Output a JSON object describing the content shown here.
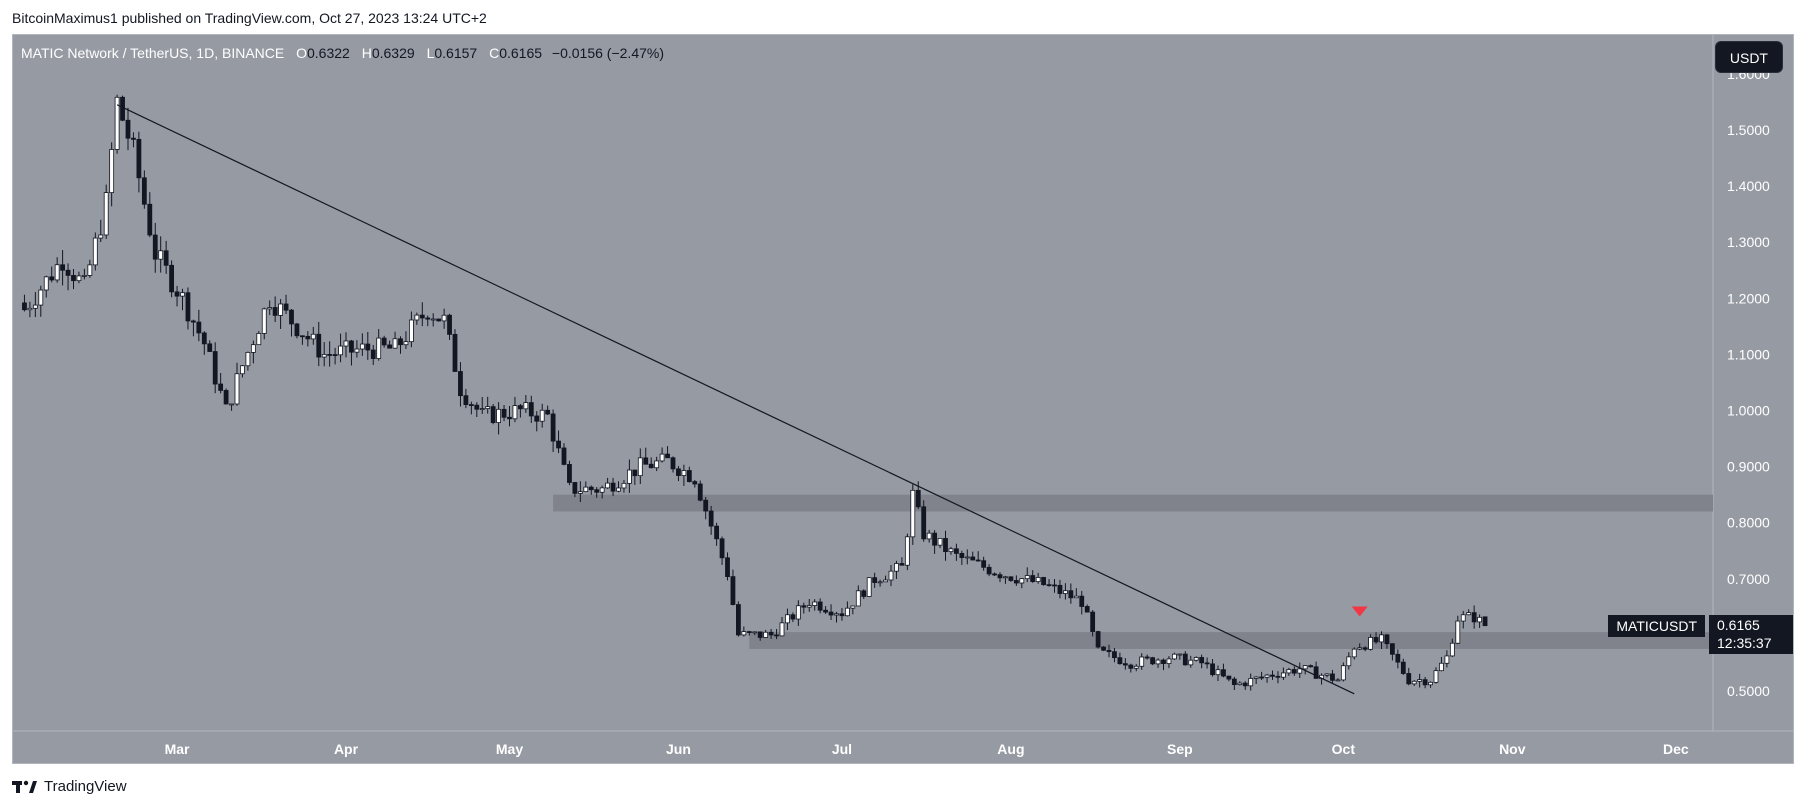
{
  "header": {
    "publish_line": "BitcoinMaximus1 published on TradingView.com, Oct 27, 2023 13:24 UTC+2"
  },
  "legend": {
    "symbol_line": "MATIC Network / TetherUS, 1D, BINANCE",
    "open_label": "O",
    "open": "0.6322",
    "high_label": "H",
    "high": "0.6329",
    "low_label": "L",
    "low": "0.6157",
    "close_label": "C",
    "close": "0.6165",
    "change": "−0.0156 (−2.47%)"
  },
  "currency_button": "USDT",
  "price_axis": {
    "labels": [
      "1.5000",
      "1.4000",
      "1.3000",
      "1.2000",
      "1.1000",
      "1.0000",
      "0.9000",
      "0.8000",
      "0.7000",
      "0.5000"
    ],
    "top_partial": "1.6000"
  },
  "time_axis": {
    "labels": [
      "Mar",
      "Apr",
      "May",
      "Jun",
      "Jul",
      "Aug",
      "Sep",
      "Oct",
      "Nov",
      "Dec"
    ]
  },
  "last_price": {
    "ticker": "MATICUSDT",
    "price": "0.6165",
    "countdown": "12:35:37"
  },
  "brand": {
    "name": "TradingView"
  },
  "colors": {
    "background": "#969aa3",
    "candle_up": "#ffffff",
    "candle_down": "#131722",
    "zone": "#80838b",
    "trendline": "#131722",
    "marker": "#f23645"
  },
  "chart_data": {
    "type": "candlestick",
    "title": "MATIC Network / TetherUS, 1D, BINANCE",
    "ylim": [
      0.44,
      1.64
    ],
    "x_ticks": [
      "Mar",
      "Apr",
      "May",
      "Jun",
      "Jul",
      "Aug",
      "Sep",
      "Oct",
      "Nov",
      "Dec"
    ],
    "y_ticks": [
      0.5,
      0.7,
      0.8,
      0.9,
      1.0,
      1.1,
      1.2,
      1.3,
      1.4,
      1.5
    ],
    "annotations": {
      "descending_trendline": {
        "from": {
          "date": "2023-02-18",
          "price": 1.545
        },
        "to": {
          "date": "2023-10-03",
          "price": 0.495
        }
      },
      "resistance_zone": {
        "from_date": "2023-05-09",
        "low": 0.82,
        "high": 0.85
      },
      "support_zone": {
        "from_date": "2023-06-14",
        "low": 0.575,
        "high": 0.605
      },
      "rejection_marker": {
        "date": "2023-10-04",
        "price": 0.64
      }
    },
    "last": {
      "open": 0.6322,
      "high": 0.6329,
      "low": 0.6157,
      "close": 0.6165
    },
    "waypoints": [
      {
        "date": "2023-02-01",
        "price": 1.18
      },
      {
        "date": "2023-02-08",
        "price": 1.27
      },
      {
        "date": "2023-02-12",
        "price": 1.22
      },
      {
        "date": "2023-02-16",
        "price": 1.37
      },
      {
        "date": "2023-02-18",
        "price": 1.55
      },
      {
        "date": "2023-02-21",
        "price": 1.46
      },
      {
        "date": "2023-02-25",
        "price": 1.28
      },
      {
        "date": "2023-03-02",
        "price": 1.2
      },
      {
        "date": "2023-03-06",
        "price": 1.12
      },
      {
        "date": "2023-03-10",
        "price": 1.0
      },
      {
        "date": "2023-03-13",
        "price": 1.08
      },
      {
        "date": "2023-03-18",
        "price": 1.2
      },
      {
        "date": "2023-03-24",
        "price": 1.14
      },
      {
        "date": "2023-03-28",
        "price": 1.1
      },
      {
        "date": "2023-04-05",
        "price": 1.11
      },
      {
        "date": "2023-04-10",
        "price": 1.11
      },
      {
        "date": "2023-04-16",
        "price": 1.18
      },
      {
        "date": "2023-04-19",
        "price": 1.16
      },
      {
        "date": "2023-04-22",
        "price": 1.04
      },
      {
        "date": "2023-04-26",
        "price": 0.99
      },
      {
        "date": "2023-05-03",
        "price": 1.0
      },
      {
        "date": "2023-05-08",
        "price": 0.99
      },
      {
        "date": "2023-05-12",
        "price": 0.86
      },
      {
        "date": "2023-05-18",
        "price": 0.86
      },
      {
        "date": "2023-05-25",
        "price": 0.9
      },
      {
        "date": "2023-05-30",
        "price": 0.91
      },
      {
        "date": "2023-06-04",
        "price": 0.88
      },
      {
        "date": "2023-06-10",
        "price": 0.71
      },
      {
        "date": "2023-06-12",
        "price": 0.6
      },
      {
        "date": "2023-06-18",
        "price": 0.6
      },
      {
        "date": "2023-06-25",
        "price": 0.66
      },
      {
        "date": "2023-07-01",
        "price": 0.64
      },
      {
        "date": "2023-07-07",
        "price": 0.7
      },
      {
        "date": "2023-07-12",
        "price": 0.72
      },
      {
        "date": "2023-07-14",
        "price": 0.85
      },
      {
        "date": "2023-07-16",
        "price": 0.78
      },
      {
        "date": "2023-07-22",
        "price": 0.74
      },
      {
        "date": "2023-07-30",
        "price": 0.71
      },
      {
        "date": "2023-08-07",
        "price": 0.69
      },
      {
        "date": "2023-08-14",
        "price": 0.66
      },
      {
        "date": "2023-08-17",
        "price": 0.57
      },
      {
        "date": "2023-08-23",
        "price": 0.55
      },
      {
        "date": "2023-08-30",
        "price": 0.56
      },
      {
        "date": "2023-09-05",
        "price": 0.55
      },
      {
        "date": "2023-09-11",
        "price": 0.51
      },
      {
        "date": "2023-09-18",
        "price": 0.53
      },
      {
        "date": "2023-09-23",
        "price": 0.54
      },
      {
        "date": "2023-09-30",
        "price": 0.52
      },
      {
        "date": "2023-10-03",
        "price": 0.58
      },
      {
        "date": "2023-10-08",
        "price": 0.59
      },
      {
        "date": "2023-10-13",
        "price": 0.52
      },
      {
        "date": "2023-10-17",
        "price": 0.52
      },
      {
        "date": "2023-10-20",
        "price": 0.56
      },
      {
        "date": "2023-10-22",
        "price": 0.63
      },
      {
        "date": "2023-10-25",
        "price": 0.632
      },
      {
        "date": "2023-10-27",
        "price": 0.6165
      }
    ]
  }
}
